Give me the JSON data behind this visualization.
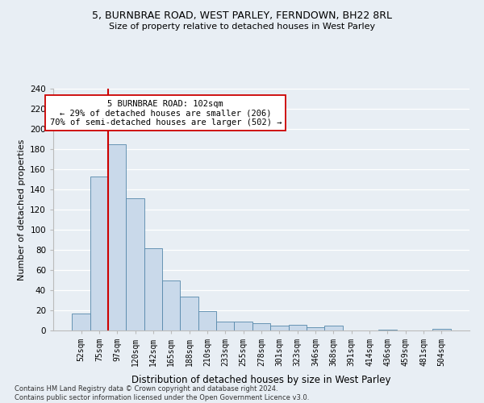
{
  "title_line1": "5, BURNBRAE ROAD, WEST PARLEY, FERNDOWN, BH22 8RL",
  "title_line2": "Size of property relative to detached houses in West Parley",
  "xlabel": "Distribution of detached houses by size in West Parley",
  "ylabel": "Number of detached properties",
  "bar_labels": [
    "52sqm",
    "75sqm",
    "97sqm",
    "120sqm",
    "142sqm",
    "165sqm",
    "188sqm",
    "210sqm",
    "233sqm",
    "255sqm",
    "278sqm",
    "301sqm",
    "323sqm",
    "346sqm",
    "368sqm",
    "391sqm",
    "414sqm",
    "436sqm",
    "459sqm",
    "481sqm",
    "504sqm"
  ],
  "bar_values": [
    17,
    153,
    185,
    131,
    82,
    50,
    34,
    19,
    9,
    9,
    7,
    5,
    6,
    3,
    5,
    0,
    0,
    1,
    0,
    0,
    2
  ],
  "bar_color": "#c9d9ea",
  "bar_edge_color": "#5588aa",
  "vline_color": "#cc0000",
  "annotation_text": "5 BURNBRAE ROAD: 102sqm\n← 29% of detached houses are smaller (206)\n70% of semi-detached houses are larger (502) →",
  "annotation_box_color": "#ffffff",
  "annotation_box_edge": "#cc0000",
  "ylim": [
    0,
    240
  ],
  "yticks": [
    0,
    20,
    40,
    60,
    80,
    100,
    120,
    140,
    160,
    180,
    200,
    220,
    240
  ],
  "footer_line1": "Contains HM Land Registry data © Crown copyright and database right 2024.",
  "footer_line2": "Contains public sector information licensed under the Open Government Licence v3.0.",
  "background_color": "#e8eef4",
  "plot_bg_color": "#e8eef4",
  "grid_color": "#ffffff"
}
